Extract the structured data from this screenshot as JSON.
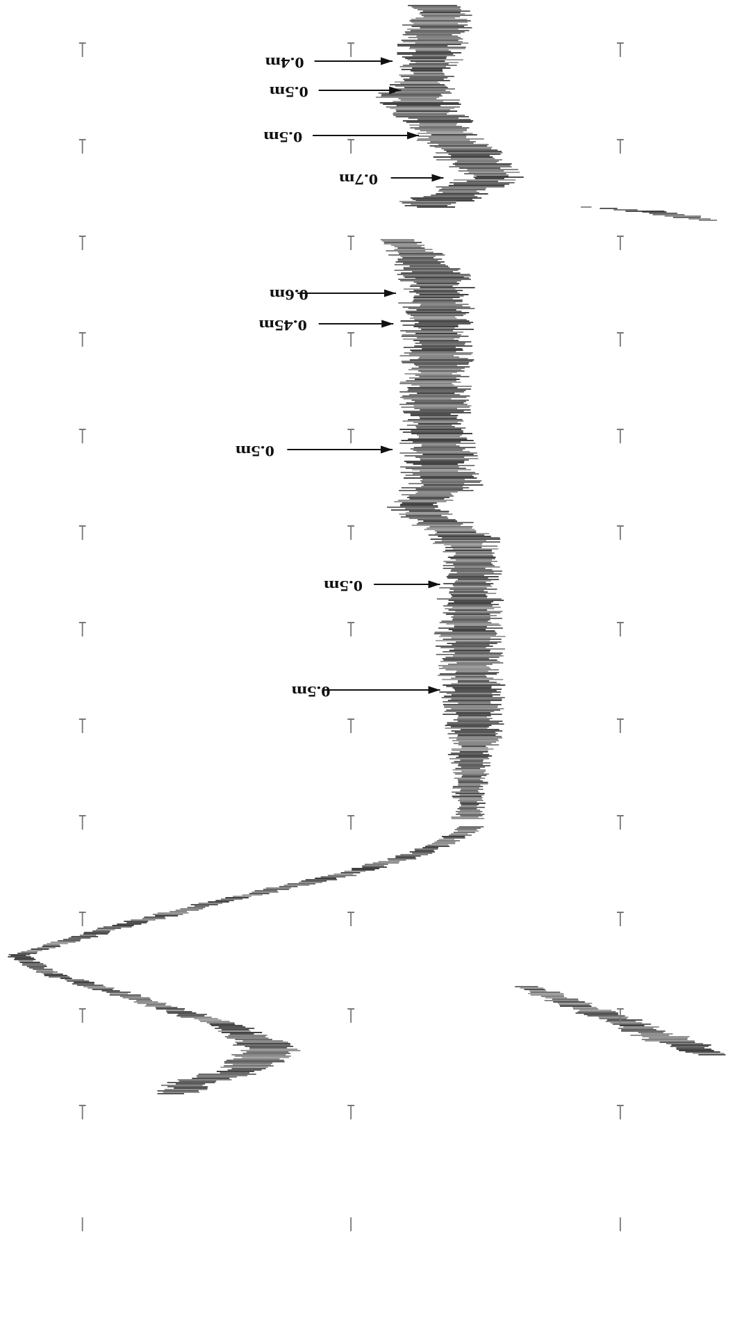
{
  "annotations": [
    "0.4m",
    "0.5m",
    "0.5m",
    "0.7m",
    "0.6m",
    "0.45m",
    "0.5m",
    "0.5m",
    "0.5m"
  ]
}
